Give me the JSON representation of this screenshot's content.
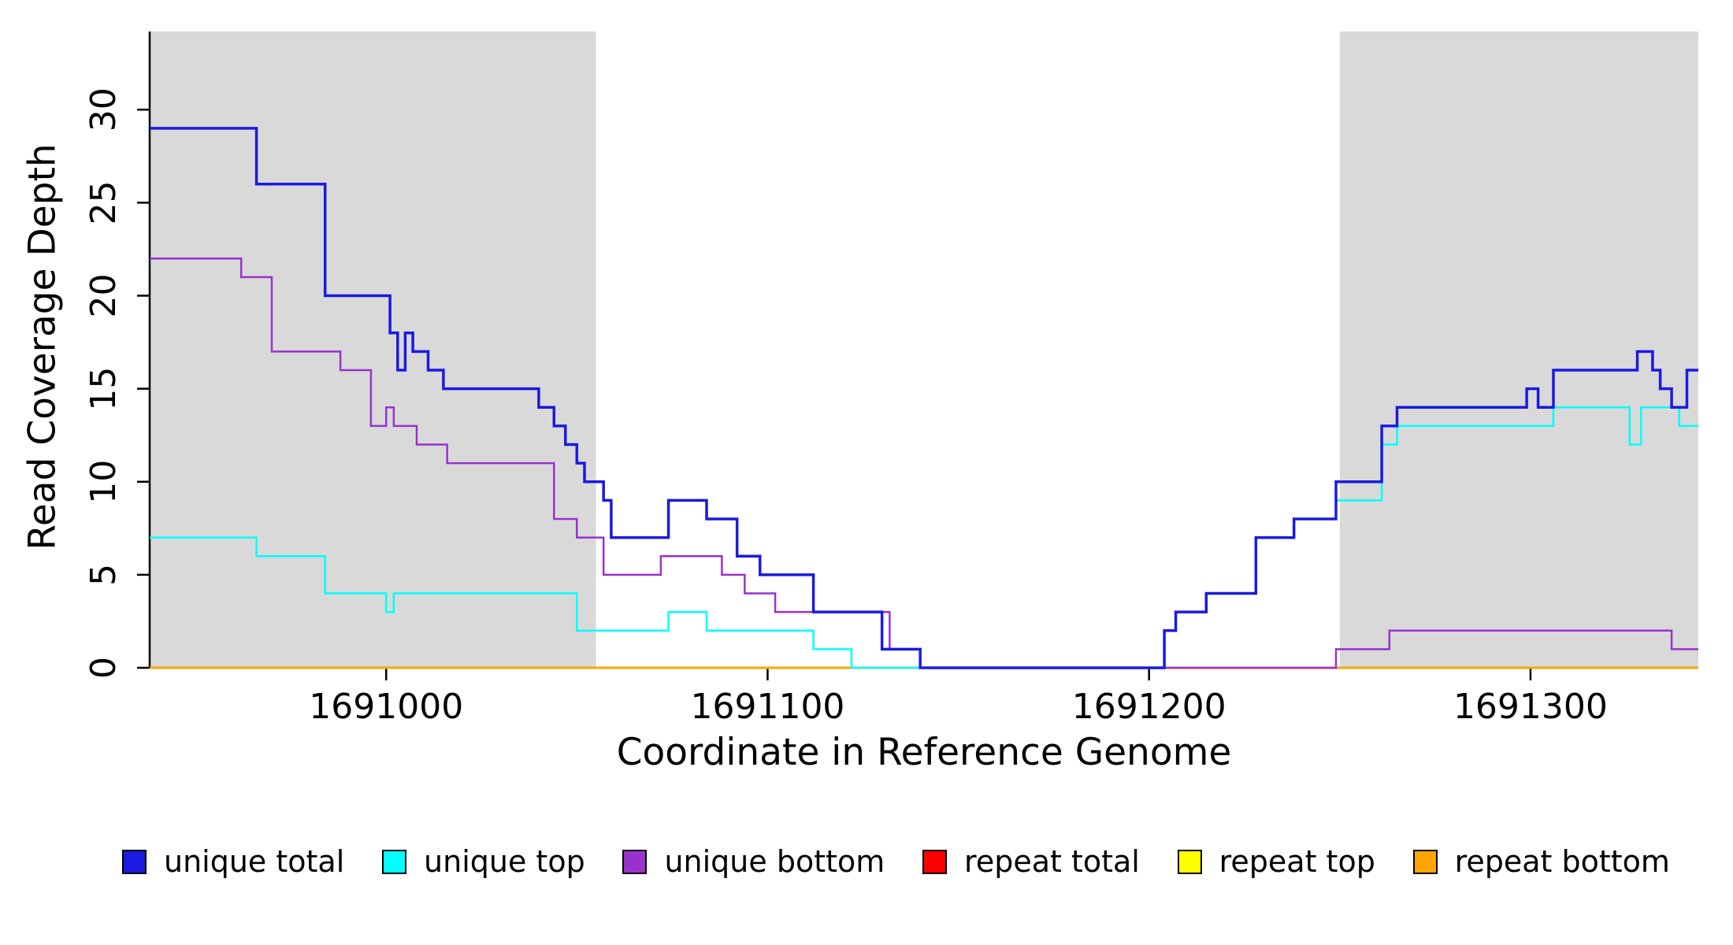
{
  "chart_data": {
    "type": "line",
    "step": true,
    "title": "",
    "xlabel": "Coordinate in Reference Genome",
    "ylabel": "Read Coverage Depth",
    "xlim": [
      1690938,
      1691344
    ],
    "ylim": [
      0,
      34.2
    ],
    "xticks": [
      1691000,
      1691100,
      1691200,
      1691300
    ],
    "yticks": [
      0,
      5,
      10,
      15,
      20,
      25,
      30
    ],
    "grid": false,
    "legend_position": "bottom",
    "band_color": "#d9d9d9",
    "shaded_regions": [
      {
        "name": "left-gray-band",
        "x0": 1690938,
        "x1": 1691055
      },
      {
        "name": "right-gray-band",
        "x0": 1691250,
        "x1": 1691344
      }
    ],
    "series": [
      {
        "name": "repeat total",
        "color": "#ff0000",
        "width": 2.5,
        "points": [
          [
            1690938,
            0
          ]
        ]
      },
      {
        "name": "repeat top",
        "color": "#ffff00",
        "width": 2.5,
        "points": [
          [
            1690938,
            0
          ]
        ]
      },
      {
        "name": "repeat bottom",
        "color": "#ffa500",
        "width": 2.5,
        "points": [
          [
            1690938,
            0
          ]
        ]
      },
      {
        "name": "unique bottom",
        "color": "#9932cc",
        "width": 2.5,
        "points": [
          [
            1690938,
            22
          ],
          [
            1690962,
            21
          ],
          [
            1690970,
            17
          ],
          [
            1690988,
            16
          ],
          [
            1690996,
            13
          ],
          [
            1691000,
            14
          ],
          [
            1691002,
            13
          ],
          [
            1691008,
            12
          ],
          [
            1691016,
            11
          ],
          [
            1691044,
            8
          ],
          [
            1691050,
            7
          ],
          [
            1691057,
            5
          ],
          [
            1691072,
            6
          ],
          [
            1691088,
            5
          ],
          [
            1691094,
            4
          ],
          [
            1691102,
            3
          ],
          [
            1691132,
            1
          ],
          [
            1691140,
            0
          ],
          [
            1691249,
            1
          ],
          [
            1691263,
            2
          ],
          [
            1691337,
            1
          ]
        ]
      },
      {
        "name": "unique top",
        "color": "#00ffff",
        "width": 2.5,
        "points": [
          [
            1690938,
            7
          ],
          [
            1690966,
            6
          ],
          [
            1690984,
            4
          ],
          [
            1691000,
            3
          ],
          [
            1691002,
            4
          ],
          [
            1691050,
            2
          ],
          [
            1691074,
            3
          ],
          [
            1691084,
            2
          ],
          [
            1691112,
            1
          ],
          [
            1691122,
            0
          ],
          [
            1691204,
            2
          ],
          [
            1691207,
            3
          ],
          [
            1691215,
            4
          ],
          [
            1691228,
            7
          ],
          [
            1691238,
            8
          ],
          [
            1691249,
            9
          ],
          [
            1691261,
            12
          ],
          [
            1691265,
            13
          ],
          [
            1691306,
            14
          ],
          [
            1691326,
            12
          ],
          [
            1691329,
            14
          ],
          [
            1691339,
            13
          ]
        ]
      },
      {
        "name": "unique total",
        "color": "#1a1ae0",
        "width": 3.5,
        "points": [
          [
            1690938,
            29
          ],
          [
            1690966,
            26
          ],
          [
            1690984,
            20
          ],
          [
            1691001,
            18
          ],
          [
            1691003,
            16
          ],
          [
            1691005,
            18
          ],
          [
            1691007,
            17
          ],
          [
            1691011,
            16
          ],
          [
            1691015,
            15
          ],
          [
            1691040,
            14
          ],
          [
            1691044,
            13
          ],
          [
            1691047,
            12
          ],
          [
            1691050,
            11
          ],
          [
            1691052,
            10
          ],
          [
            1691057,
            9
          ],
          [
            1691059,
            7
          ],
          [
            1691074,
            9
          ],
          [
            1691084,
            8
          ],
          [
            1691092,
            6
          ],
          [
            1691098,
            5
          ],
          [
            1691112,
            3
          ],
          [
            1691130,
            1
          ],
          [
            1691140,
            0
          ],
          [
            1691204,
            2
          ],
          [
            1691207,
            3
          ],
          [
            1691215,
            4
          ],
          [
            1691228,
            7
          ],
          [
            1691238,
            8
          ],
          [
            1691249,
            10
          ],
          [
            1691261,
            13
          ],
          [
            1691265,
            14
          ],
          [
            1691299,
            15
          ],
          [
            1691302,
            14
          ],
          [
            1691306,
            16
          ],
          [
            1691328,
            17
          ],
          [
            1691332,
            16
          ],
          [
            1691334,
            15
          ],
          [
            1691337,
            14
          ],
          [
            1691341,
            16
          ]
        ]
      }
    ],
    "legend": [
      {
        "label": "unique total",
        "color": "#1a1ae0"
      },
      {
        "label": "unique top",
        "color": "#00ffff"
      },
      {
        "label": "unique bottom",
        "color": "#9932cc"
      },
      {
        "label": "repeat total",
        "color": "#ff0000"
      },
      {
        "label": "repeat top",
        "color": "#ffff00"
      },
      {
        "label": "repeat bottom",
        "color": "#ffa500"
      }
    ]
  }
}
